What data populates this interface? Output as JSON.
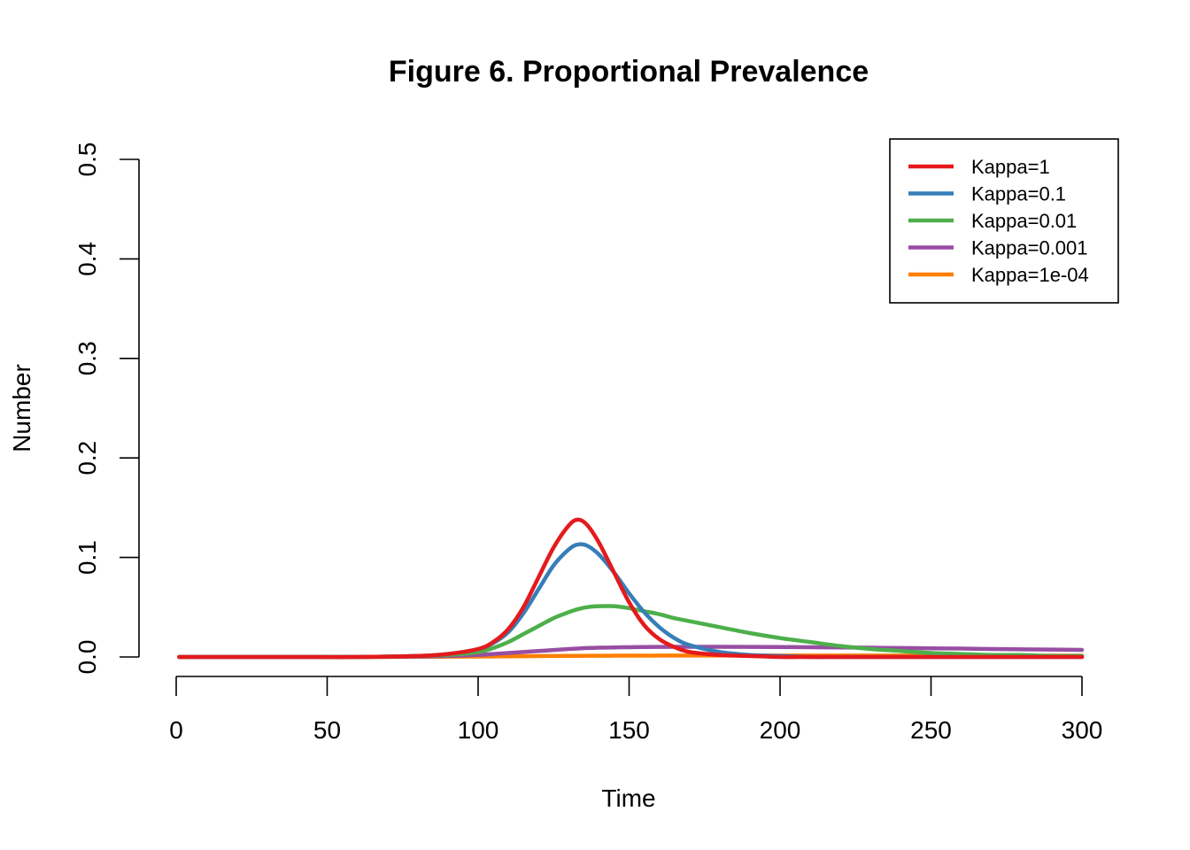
{
  "chart_data": {
    "type": "line",
    "title": "Figure 6. Proportional Prevalence",
    "xlabel": "Time",
    "ylabel": "Number",
    "xlim": [
      0,
      300
    ],
    "ylim": [
      0,
      0.5
    ],
    "xticks": [
      0,
      50,
      100,
      150,
      200,
      250,
      300
    ],
    "yticks": [
      0.0,
      0.1,
      0.2,
      0.3,
      0.4,
      0.5
    ],
    "xtick_labels": [
      "0",
      "50",
      "100",
      "150",
      "200",
      "250",
      "300"
    ],
    "ytick_labels": [
      "0.0",
      "0.1",
      "0.2",
      "0.3",
      "0.4",
      "0.5"
    ],
    "grid": false,
    "legend_position": "top-right",
    "x": [
      1,
      20,
      40,
      60,
      80,
      90,
      100,
      105,
      110,
      115,
      120,
      125,
      130,
      133,
      136,
      140,
      145,
      150,
      155,
      160,
      165,
      170,
      180,
      190,
      200,
      210,
      220,
      230,
      240,
      250,
      260,
      270,
      280,
      290,
      300
    ],
    "series": [
      {
        "name": "Kappa=1",
        "color": "#E41A1C",
        "values": [
          0,
          0,
          0,
          0,
          0.001,
          0.003,
          0.008,
          0.015,
          0.028,
          0.05,
          0.08,
          0.11,
          0.132,
          0.138,
          0.133,
          0.115,
          0.085,
          0.055,
          0.032,
          0.018,
          0.01,
          0.005,
          0.002,
          0.001,
          0,
          0,
          0,
          0,
          0,
          0,
          0,
          0,
          0,
          0,
          0
        ]
      },
      {
        "name": "Kappa=0.1",
        "color": "#377EB8",
        "values": [
          0,
          0,
          0,
          0,
          0.001,
          0.003,
          0.008,
          0.014,
          0.025,
          0.044,
          0.068,
          0.092,
          0.108,
          0.113,
          0.112,
          0.103,
          0.085,
          0.064,
          0.045,
          0.03,
          0.019,
          0.012,
          0.005,
          0.002,
          0.001,
          0,
          0,
          0,
          0,
          0,
          0,
          0,
          0,
          0,
          0
        ]
      },
      {
        "name": "Kappa=0.01",
        "color": "#4DAF4A",
        "values": [
          0,
          0,
          0,
          0,
          0.001,
          0.002,
          0.005,
          0.009,
          0.015,
          0.023,
          0.031,
          0.039,
          0.045,
          0.048,
          0.05,
          0.051,
          0.051,
          0.049,
          0.046,
          0.043,
          0.039,
          0.036,
          0.03,
          0.024,
          0.019,
          0.015,
          0.011,
          0.008,
          0.006,
          0.004,
          0.003,
          0.002,
          0.002,
          0.001,
          0.001
        ]
      },
      {
        "name": "Kappa=0.001",
        "color": "#984EA3",
        "values": [
          0,
          0,
          0,
          0,
          0.0005,
          0.001,
          0.002,
          0.003,
          0.004,
          0.005,
          0.006,
          0.007,
          0.008,
          0.0085,
          0.009,
          0.0093,
          0.0096,
          0.0098,
          0.01,
          0.0101,
          0.0102,
          0.0102,
          0.0102,
          0.0101,
          0.01,
          0.0098,
          0.0096,
          0.0093,
          0.009,
          0.0087,
          0.0084,
          0.008,
          0.0077,
          0.0074,
          0.0071
        ]
      },
      {
        "name": "Kappa=1e-04",
        "color": "#FF7F00",
        "values": [
          0,
          0,
          0,
          0,
          0.0002,
          0.0003,
          0.0005,
          0.0006,
          0.0007,
          0.0008,
          0.0009,
          0.001,
          0.0011,
          0.0011,
          0.0012,
          0.0012,
          0.0013,
          0.0013,
          0.0013,
          0.0014,
          0.0014,
          0.0014,
          0.0014,
          0.0014,
          0.0014,
          0.0014,
          0.0014,
          0.0014,
          0.0014,
          0.0014,
          0.0014,
          0.0013,
          0.0013,
          0.0013,
          0.0013
        ]
      }
    ]
  }
}
